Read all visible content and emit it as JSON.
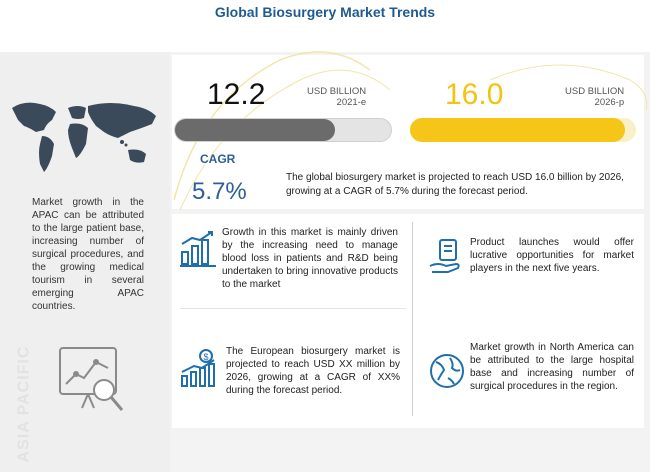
{
  "header": {
    "title": "Global Biosurgery Market Trends"
  },
  "chart_data": {
    "type": "bar",
    "categories": [
      "2021-e",
      "2026-p"
    ],
    "series": [
      {
        "values": [
          12.2,
          16.0
        ]
      }
    ],
    "unit": "USD BILLION",
    "cagr": "5.7%"
  },
  "market": {
    "value_2021": "12.2",
    "unit_2021": "USD BILLION",
    "year_2021": "2021-e",
    "value_2026": "16.0",
    "unit_2026": "USD BILLION",
    "year_2026": "2026-p",
    "cagr_label": "CAGR",
    "cagr_value": "5.7%",
    "summary": "The global biosurgery market is projected to reach USD 16.0 billion by 2026, growing at a CAGR of 5.7% during the forecast period."
  },
  "region": {
    "apac_text": "Market growth in the APAC can be attributed to the large patient base, increasing number of surgical procedures, and the growing medical tourism in several emerging APAC countries.",
    "vertical_label": "ASIA PACIFIC"
  },
  "features": [
    {
      "text": "Growth in this market is mainly driven by the increasing need to manage blood loss in patients and R&D being undertaken to bring innovative products to the market",
      "icon": "growth-chart-icon"
    },
    {
      "text": "Product launches would offer lucrative opportunities for market players in the next five years.",
      "icon": "product-hand-icon"
    },
    {
      "text": "The European biosurgery market is projected to reach USD XX million by 2026, growing at a CAGR of XX% during the forecast period.",
      "icon": "dollar-growth-icon"
    },
    {
      "text": "Market growth in North America can be attributed to the large hospital base and increasing number of surgical procedures in the region.",
      "icon": "globe-icon"
    }
  ],
  "colors": {
    "accent": "#f5c518",
    "primary": "#2b5f96",
    "bar_2021": "#6b6b6b",
    "icon": "#1f6fae"
  }
}
